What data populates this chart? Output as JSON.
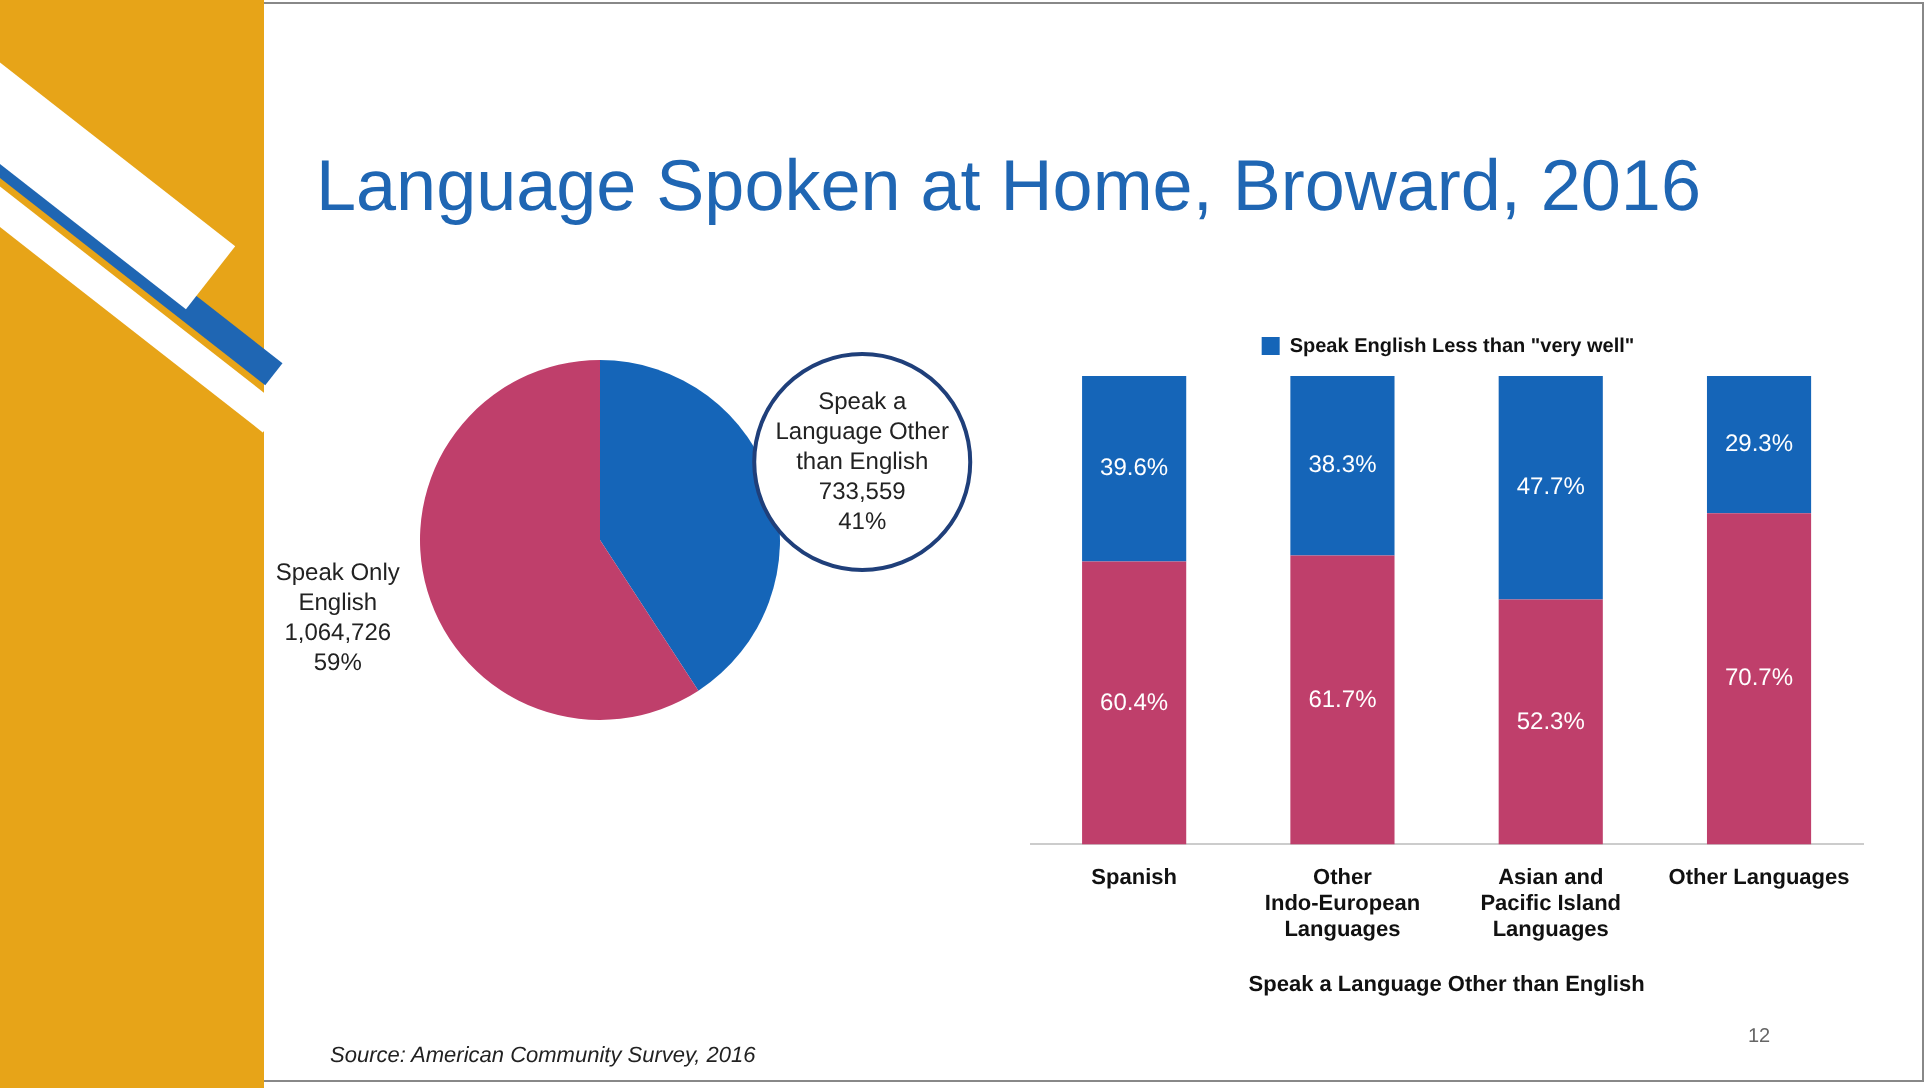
{
  "chart_data": [
    {
      "type": "pie",
      "title": "Language Spoken at Home, Broward, 2016",
      "categories": [
        "Speak a Language Other than English",
        "Speak Only English"
      ],
      "values": [
        733559,
        1064726
      ],
      "colors": [
        "#1565b8",
        "#bf3f6b"
      ],
      "value_labels": [
        "733,559\n41%",
        "1,064,726\n59%"
      ],
      "legend": false,
      "annotations": [
        "Source: American Community Survey, 2016",
        "12"
      ]
    },
    {
      "type": "bar",
      "stacked": true,
      "categories": [
        "Spanish",
        "Other Indo-European Languages",
        "Asian and Pacific Island Languages",
        "Other Languages"
      ],
      "ylim": [
        0,
        100
      ],
      "tick_labels": "x",
      "grid": false,
      "legend": "top",
      "xlabel": "Speak a Language Other than English",
      "series": [
        {
          "color": "#bf3f6b",
          "values": [
            60.4,
            61.7,
            52.3,
            70.7
          ],
          "value_labels": [
            "60.4%",
            "61.7%",
            "52.3%",
            "70.7%"
          ]
        },
        {
          "name": "Speak English Less than \"very well\"",
          "color": "#1565b8",
          "values": [
            39.6,
            38.3,
            47.7,
            29.3
          ],
          "value_labels": [
            "39.6%",
            "38.3%",
            "47.7%",
            "29.3%"
          ]
        }
      ]
    }
  ]
}
